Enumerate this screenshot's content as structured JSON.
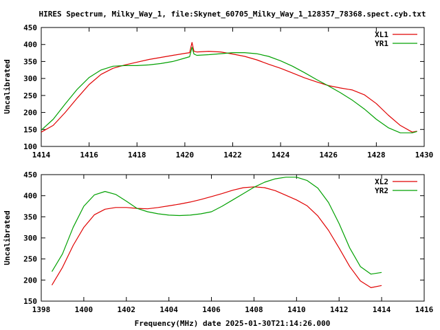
{
  "title": "HIRES Spectrum, Milky_Way_1, file:Skynet_60705_Milky_Way_1_128357_78368.spect.cyb.txt",
  "xlabel": "Frequency(MHz) date 2025-01-30T21:14:26.000",
  "colors": {
    "red": "#e00000",
    "green": "#00a000",
    "axis": "#000000"
  },
  "chart_data": [
    {
      "type": "line",
      "ylabel": "Uncalibrated",
      "xlim": [
        1414,
        1430
      ],
      "ylim": [
        100,
        450
      ],
      "xticks": [
        1414,
        1416,
        1418,
        1420,
        1422,
        1424,
        1426,
        1428,
        1430
      ],
      "yticks": [
        100,
        150,
        200,
        250,
        300,
        350,
        400,
        450
      ],
      "legend": "top-right",
      "series": [
        {
          "name": "XL1",
          "color": "red",
          "x": [
            1414.0,
            1414.5,
            1415.0,
            1415.5,
            1416.0,
            1416.5,
            1417.0,
            1417.5,
            1418.0,
            1418.5,
            1419.0,
            1419.5,
            1420.0,
            1420.2,
            1420.3,
            1420.38,
            1420.5,
            1421.0,
            1421.5,
            1422.0,
            1422.5,
            1423.0,
            1423.5,
            1424.0,
            1424.5,
            1425.0,
            1425.5,
            1426.0,
            1426.5,
            1427.0,
            1427.5,
            1428.0,
            1428.5,
            1429.0,
            1429.5,
            1429.7
          ],
          "y": [
            142,
            162,
            200,
            242,
            282,
            312,
            330,
            340,
            348,
            356,
            362,
            368,
            374,
            376,
            406,
            380,
            378,
            380,
            378,
            372,
            365,
            355,
            342,
            330,
            316,
            302,
            290,
            279,
            272,
            266,
            252,
            226,
            192,
            162,
            142,
            145
          ]
        },
        {
          "name": "YR1",
          "color": "green",
          "x": [
            1414.0,
            1414.5,
            1415.0,
            1415.5,
            1416.0,
            1416.5,
            1417.0,
            1417.5,
            1418.0,
            1418.5,
            1419.0,
            1419.5,
            1420.0,
            1420.2,
            1420.3,
            1420.38,
            1420.5,
            1421.0,
            1421.5,
            1422.0,
            1422.5,
            1423.0,
            1423.5,
            1424.0,
            1424.5,
            1425.0,
            1425.5,
            1426.0,
            1426.5,
            1427.0,
            1427.5,
            1428.0,
            1428.5,
            1429.0,
            1429.5,
            1429.7
          ],
          "y": [
            148,
            180,
            225,
            268,
            303,
            325,
            336,
            338,
            338,
            340,
            344,
            350,
            360,
            364,
            392,
            372,
            368,
            370,
            373,
            376,
            376,
            373,
            365,
            352,
            336,
            317,
            297,
            278,
            258,
            236,
            210,
            180,
            155,
            140,
            140,
            144
          ]
        }
      ]
    },
    {
      "type": "line",
      "ylabel": "Uncalibrated",
      "xlim": [
        1398,
        1416
      ],
      "ylim": [
        150,
        450
      ],
      "xticks": [
        1398,
        1400,
        1402,
        1404,
        1406,
        1408,
        1410,
        1412,
        1414,
        1416
      ],
      "yticks": [
        150,
        200,
        250,
        300,
        350,
        400,
        450
      ],
      "legend": "top-right",
      "series": [
        {
          "name": "XL2",
          "color": "red",
          "x": [
            1398.5,
            1399.0,
            1399.5,
            1400.0,
            1400.5,
            1401.0,
            1401.5,
            1402.0,
            1402.5,
            1403.0,
            1403.5,
            1404.0,
            1404.5,
            1405.0,
            1405.5,
            1406.0,
            1406.5,
            1407.0,
            1407.5,
            1408.0,
            1408.5,
            1409.0,
            1409.5,
            1410.0,
            1410.5,
            1411.0,
            1411.5,
            1412.0,
            1412.5,
            1413.0,
            1413.5,
            1414.0
          ],
          "y": [
            188,
            230,
            282,
            325,
            355,
            368,
            372,
            372,
            370,
            369,
            372,
            376,
            380,
            385,
            391,
            398,
            405,
            413,
            419,
            421,
            419,
            412,
            401,
            390,
            376,
            352,
            318,
            276,
            232,
            198,
            182,
            187
          ]
        },
        {
          "name": "YR2",
          "color": "green",
          "x": [
            1398.5,
            1399.0,
            1399.5,
            1400.0,
            1400.5,
            1401.0,
            1401.5,
            1402.0,
            1402.5,
            1403.0,
            1403.5,
            1404.0,
            1404.5,
            1405.0,
            1405.5,
            1406.0,
            1406.5,
            1407.0,
            1407.5,
            1408.0,
            1408.5,
            1409.0,
            1409.5,
            1410.0,
            1410.5,
            1411.0,
            1411.5,
            1412.0,
            1412.5,
            1413.0,
            1413.5,
            1414.0
          ],
          "y": [
            220,
            262,
            325,
            375,
            402,
            410,
            403,
            387,
            370,
            362,
            357,
            354,
            353,
            354,
            357,
            362,
            375,
            390,
            405,
            420,
            432,
            440,
            444,
            444,
            436,
            418,
            384,
            334,
            276,
            232,
            214,
            218
          ]
        }
      ]
    }
  ]
}
